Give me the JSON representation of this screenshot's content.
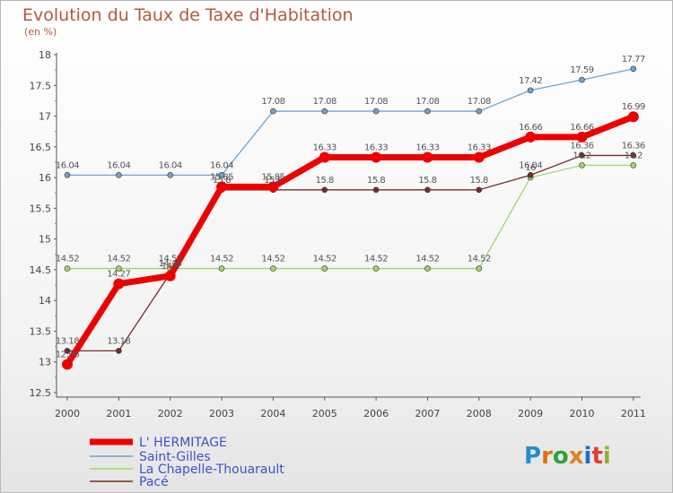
{
  "chart_data": {
    "type": "line",
    "title": "Evolution du Taux de Taxe d'Habitation",
    "subtitle": "(en %)",
    "xlabel": "",
    "ylabel": "",
    "categories": [
      "2000",
      "2001",
      "2002",
      "2003",
      "2004",
      "2005",
      "2006",
      "2007",
      "2008",
      "2009",
      "2010",
      "2011"
    ],
    "ylim": [
      12.5,
      18
    ],
    "yticks": [
      12.5,
      13,
      13.5,
      14,
      14.5,
      15,
      15.5,
      16,
      16.5,
      17,
      17.5,
      18
    ],
    "ytick_labels": [
      "12.5",
      "13",
      "13.5",
      "14",
      "14.5",
      "15",
      "15.5",
      "16",
      "16.5",
      "17",
      "17.5",
      "18"
    ],
    "grid": false,
    "legend_placement": "bottom-left",
    "series": [
      {
        "name": "L' HERMITAGE",
        "color": "#ee0000",
        "values": [
          12.96,
          14.27,
          14.4,
          15.85,
          15.85,
          16.33,
          16.33,
          16.33,
          16.33,
          16.66,
          16.66,
          16.99
        ],
        "labels": [
          "12.96",
          "14.27",
          "14.4",
          "15.85",
          "15.85",
          "16.33",
          "16.33",
          "16.33",
          "16.33",
          "16.66",
          "16.66",
          "16.99"
        ]
      },
      {
        "name": "Saint-Gilles",
        "color": "#6fa3d0",
        "values": [
          16.04,
          16.04,
          16.04,
          16.04,
          17.08,
          17.08,
          17.08,
          17.08,
          17.08,
          17.42,
          17.59,
          17.77
        ],
        "labels": [
          "16.04",
          "16.04",
          "16.04",
          "16.04",
          "17.08",
          "17.08",
          "17.08",
          "17.08",
          "17.08",
          "17.42",
          "17.59",
          "17.77"
        ]
      },
      {
        "name": "La Chapelle-Thouarault",
        "color": "#9ed86a",
        "values": [
          14.52,
          14.52,
          14.52,
          14.52,
          14.52,
          14.52,
          14.52,
          14.52,
          14.52,
          16.0,
          16.2,
          16.2
        ],
        "labels": [
          "14.52",
          "14.52",
          "14.52",
          "14.52",
          "14.52",
          "14.52",
          "14.52",
          "14.52",
          "14.52",
          "16",
          "16.2",
          "16.2"
        ]
      },
      {
        "name": "Pacé",
        "color": "#7a2a2a",
        "values": [
          13.18,
          13.18,
          14.44,
          15.8,
          15.8,
          15.8,
          15.8,
          15.8,
          15.8,
          16.04,
          16.36,
          16.36
        ],
        "labels": [
          "13.18",
          "13.18",
          "14.44",
          "15.8",
          "15.8",
          "15.8",
          "15.8",
          "15.8",
          "15.8",
          "16.04",
          "16.36",
          "16.36"
        ]
      }
    ]
  },
  "logo": {
    "text": "Proxiti"
  }
}
